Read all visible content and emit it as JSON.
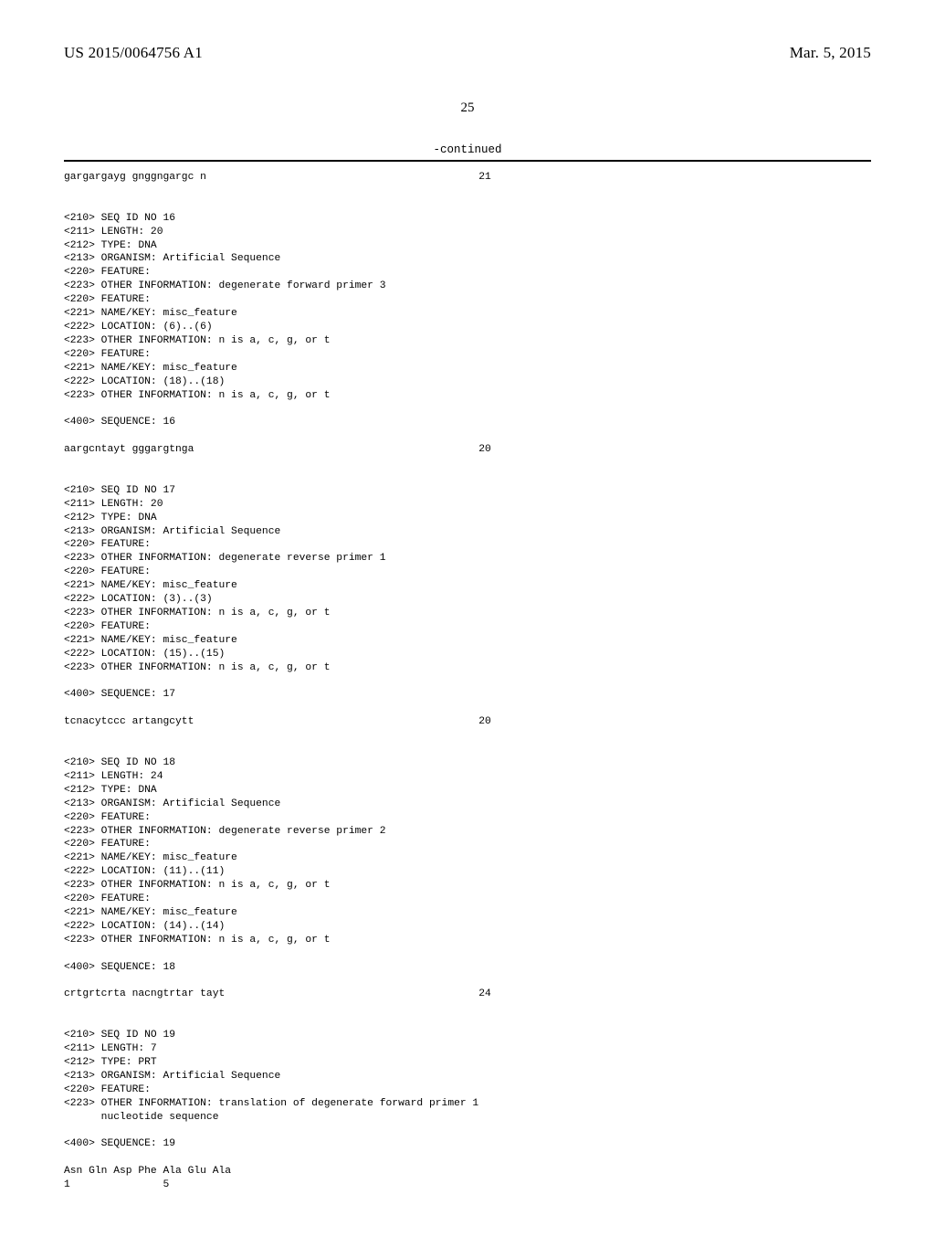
{
  "header": {
    "pub_number": "US 2015/0064756 A1",
    "pub_date": "Mar. 5, 2015"
  },
  "page_number": "25",
  "continued_label": "-continued",
  "blocks": [
    {
      "type": "seqline",
      "text": "gargargayg gnggngargc n",
      "num": "21"
    },
    {
      "type": "blank2"
    },
    {
      "type": "line",
      "text": "<210> SEQ ID NO 16"
    },
    {
      "type": "line",
      "text": "<211> LENGTH: 20"
    },
    {
      "type": "line",
      "text": "<212> TYPE: DNA"
    },
    {
      "type": "line",
      "text": "<213> ORGANISM: Artificial Sequence"
    },
    {
      "type": "line",
      "text": "<220> FEATURE:"
    },
    {
      "type": "line",
      "text": "<223> OTHER INFORMATION: degenerate forward primer 3"
    },
    {
      "type": "line",
      "text": "<220> FEATURE:"
    },
    {
      "type": "line",
      "text": "<221> NAME/KEY: misc_feature"
    },
    {
      "type": "line",
      "text": "<222> LOCATION: (6)..(6)"
    },
    {
      "type": "line",
      "text": "<223> OTHER INFORMATION: n is a, c, g, or t"
    },
    {
      "type": "line",
      "text": "<220> FEATURE:"
    },
    {
      "type": "line",
      "text": "<221> NAME/KEY: misc_feature"
    },
    {
      "type": "line",
      "text": "<222> LOCATION: (18)..(18)"
    },
    {
      "type": "line",
      "text": "<223> OTHER INFORMATION: n is a, c, g, or t"
    },
    {
      "type": "blank"
    },
    {
      "type": "line",
      "text": "<400> SEQUENCE: 16"
    },
    {
      "type": "blank"
    },
    {
      "type": "seqline",
      "text": "aargcntayt gggargtnga",
      "num": "20"
    },
    {
      "type": "blank2"
    },
    {
      "type": "line",
      "text": "<210> SEQ ID NO 17"
    },
    {
      "type": "line",
      "text": "<211> LENGTH: 20"
    },
    {
      "type": "line",
      "text": "<212> TYPE: DNA"
    },
    {
      "type": "line",
      "text": "<213> ORGANISM: Artificial Sequence"
    },
    {
      "type": "line",
      "text": "<220> FEATURE:"
    },
    {
      "type": "line",
      "text": "<223> OTHER INFORMATION: degenerate reverse primer 1"
    },
    {
      "type": "line",
      "text": "<220> FEATURE:"
    },
    {
      "type": "line",
      "text": "<221> NAME/KEY: misc_feature"
    },
    {
      "type": "line",
      "text": "<222> LOCATION: (3)..(3)"
    },
    {
      "type": "line",
      "text": "<223> OTHER INFORMATION: n is a, c, g, or t"
    },
    {
      "type": "line",
      "text": "<220> FEATURE:"
    },
    {
      "type": "line",
      "text": "<221> NAME/KEY: misc_feature"
    },
    {
      "type": "line",
      "text": "<222> LOCATION: (15)..(15)"
    },
    {
      "type": "line",
      "text": "<223> OTHER INFORMATION: n is a, c, g, or t"
    },
    {
      "type": "blank"
    },
    {
      "type": "line",
      "text": "<400> SEQUENCE: 17"
    },
    {
      "type": "blank"
    },
    {
      "type": "seqline",
      "text": "tcnacytccc artangcytt",
      "num": "20"
    },
    {
      "type": "blank2"
    },
    {
      "type": "line",
      "text": "<210> SEQ ID NO 18"
    },
    {
      "type": "line",
      "text": "<211> LENGTH: 24"
    },
    {
      "type": "line",
      "text": "<212> TYPE: DNA"
    },
    {
      "type": "line",
      "text": "<213> ORGANISM: Artificial Sequence"
    },
    {
      "type": "line",
      "text": "<220> FEATURE:"
    },
    {
      "type": "line",
      "text": "<223> OTHER INFORMATION: degenerate reverse primer 2"
    },
    {
      "type": "line",
      "text": "<220> FEATURE:"
    },
    {
      "type": "line",
      "text": "<221> NAME/KEY: misc_feature"
    },
    {
      "type": "line",
      "text": "<222> LOCATION: (11)..(11)"
    },
    {
      "type": "line",
      "text": "<223> OTHER INFORMATION: n is a, c, g, or t"
    },
    {
      "type": "line",
      "text": "<220> FEATURE:"
    },
    {
      "type": "line",
      "text": "<221> NAME/KEY: misc_feature"
    },
    {
      "type": "line",
      "text": "<222> LOCATION: (14)..(14)"
    },
    {
      "type": "line",
      "text": "<223> OTHER INFORMATION: n is a, c, g, or t"
    },
    {
      "type": "blank"
    },
    {
      "type": "line",
      "text": "<400> SEQUENCE: 18"
    },
    {
      "type": "blank"
    },
    {
      "type": "seqline",
      "text": "crtgrtcrta nacngtrtar tayt",
      "num": "24"
    },
    {
      "type": "blank2"
    },
    {
      "type": "line",
      "text": "<210> SEQ ID NO 19"
    },
    {
      "type": "line",
      "text": "<211> LENGTH: 7"
    },
    {
      "type": "line",
      "text": "<212> TYPE: PRT"
    },
    {
      "type": "line",
      "text": "<213> ORGANISM: Artificial Sequence"
    },
    {
      "type": "line",
      "text": "<220> FEATURE:"
    },
    {
      "type": "line",
      "text": "<223> OTHER INFORMATION: translation of degenerate forward primer 1"
    },
    {
      "type": "line",
      "text": "      nucleotide sequence"
    },
    {
      "type": "blank"
    },
    {
      "type": "line",
      "text": "<400> SEQUENCE: 19"
    },
    {
      "type": "blank"
    },
    {
      "type": "line",
      "text": "Asn Gln Asp Phe Ala Glu Ala"
    },
    {
      "type": "line",
      "text": "1               5"
    }
  ],
  "layout": {
    "seq_num_col": 67
  }
}
